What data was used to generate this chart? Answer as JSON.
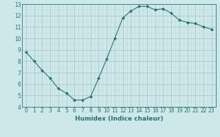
{
  "x": [
    0,
    1,
    2,
    3,
    4,
    5,
    6,
    7,
    8,
    9,
    10,
    11,
    12,
    13,
    14,
    15,
    16,
    17,
    18,
    19,
    20,
    21,
    22,
    23
  ],
  "y": [
    8.8,
    8.0,
    7.2,
    6.5,
    5.6,
    5.2,
    4.6,
    4.6,
    4.9,
    6.5,
    8.2,
    10.0,
    11.8,
    12.4,
    12.8,
    12.8,
    12.5,
    12.6,
    12.2,
    11.6,
    11.4,
    11.3,
    11.0,
    10.8
  ],
  "line_color": "#2d6e6e",
  "marker": "D",
  "marker_size": 2.0,
  "bg_color": "#cce8e8",
  "grid_major_color": "#b0cccc",
  "grid_minor_color": "#c0dcdc",
  "xlabel": "Humidex (Indice chaleur)",
  "xlim": [
    -0.5,
    23.5
  ],
  "ylim": [
    4,
    13
  ],
  "xticks": [
    0,
    1,
    2,
    3,
    4,
    5,
    6,
    7,
    8,
    9,
    10,
    11,
    12,
    13,
    14,
    15,
    16,
    17,
    18,
    19,
    20,
    21,
    22,
    23
  ],
  "yticks": [
    4,
    5,
    6,
    7,
    8,
    9,
    10,
    11,
    12,
    13
  ],
  "label_fontsize": 6.5,
  "tick_fontsize": 5.5
}
